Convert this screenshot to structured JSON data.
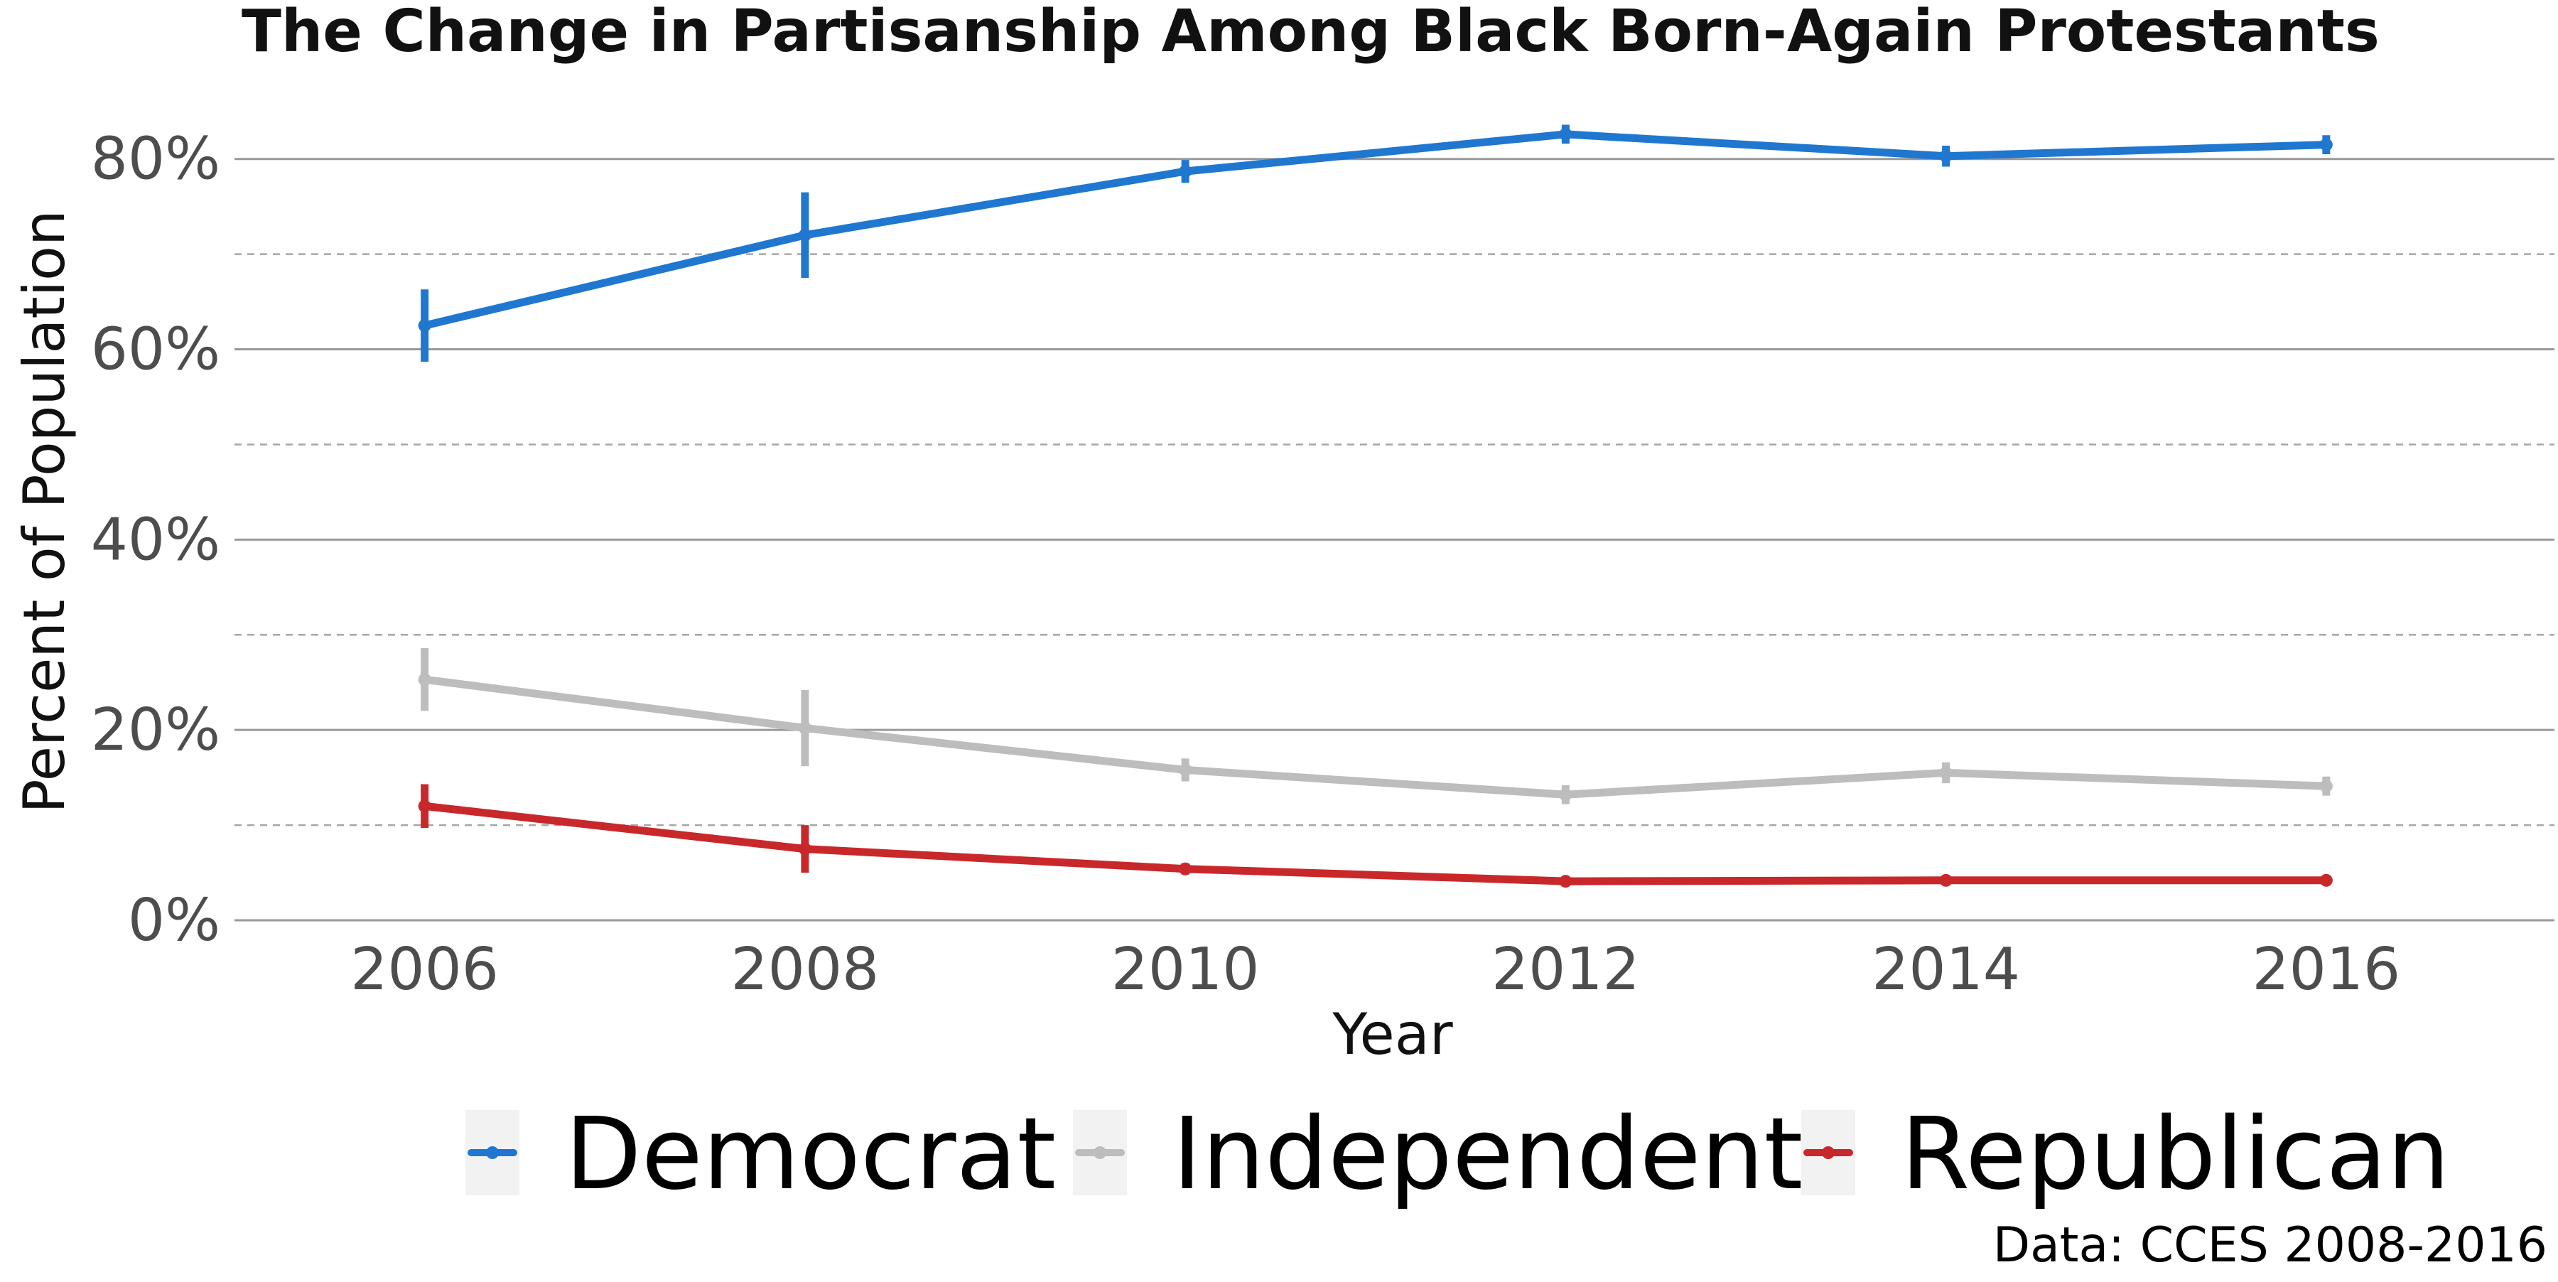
{
  "chart_data": {
    "type": "line",
    "title": "The Change in Partisanship Among Black Born-Again Protestants",
    "xlabel": "Year",
    "ylabel": "Percent of Population",
    "caption": "Data: CCES 2008-2016",
    "x": [
      2006,
      2008,
      2010,
      2012,
      2014,
      2016
    ],
    "x_tick_labels": [
      "2006",
      "2008",
      "2010",
      "2012",
      "2014",
      "2016"
    ],
    "xlim": [
      2005,
      2017.2
    ],
    "ylim": [
      0,
      0.87
    ],
    "y_ticks": [
      0,
      0.2,
      0.4,
      0.6,
      0.8
    ],
    "y_tick_labels": [
      "0%",
      "20%",
      "40%",
      "60%",
      "80%"
    ],
    "y_minor_ticks": [
      0.1,
      0.3,
      0.5,
      0.7
    ],
    "grid": true,
    "legend_position": "bottom",
    "error_bars": true,
    "series": [
      {
        "name": "Democrat",
        "color": "#1f77d0",
        "values": [
          0.625,
          0.72,
          0.787,
          0.826,
          0.803,
          0.815
        ],
        "error": [
          0.038,
          0.045,
          0.012,
          0.01,
          0.011,
          0.01
        ]
      },
      {
        "name": "Independent",
        "color": "#bdbdbd",
        "values": [
          0.253,
          0.202,
          0.158,
          0.132,
          0.155,
          0.141
        ],
        "error": [
          0.033,
          0.04,
          0.012,
          0.01,
          0.011,
          0.01
        ]
      },
      {
        "name": "Republican",
        "color": "#c9282b",
        "values": [
          0.12,
          0.075,
          0.054,
          0.041,
          0.042,
          0.042
        ],
        "error": [
          0.023,
          0.025,
          0.006,
          0.005,
          0.005,
          0.005
        ]
      }
    ]
  }
}
